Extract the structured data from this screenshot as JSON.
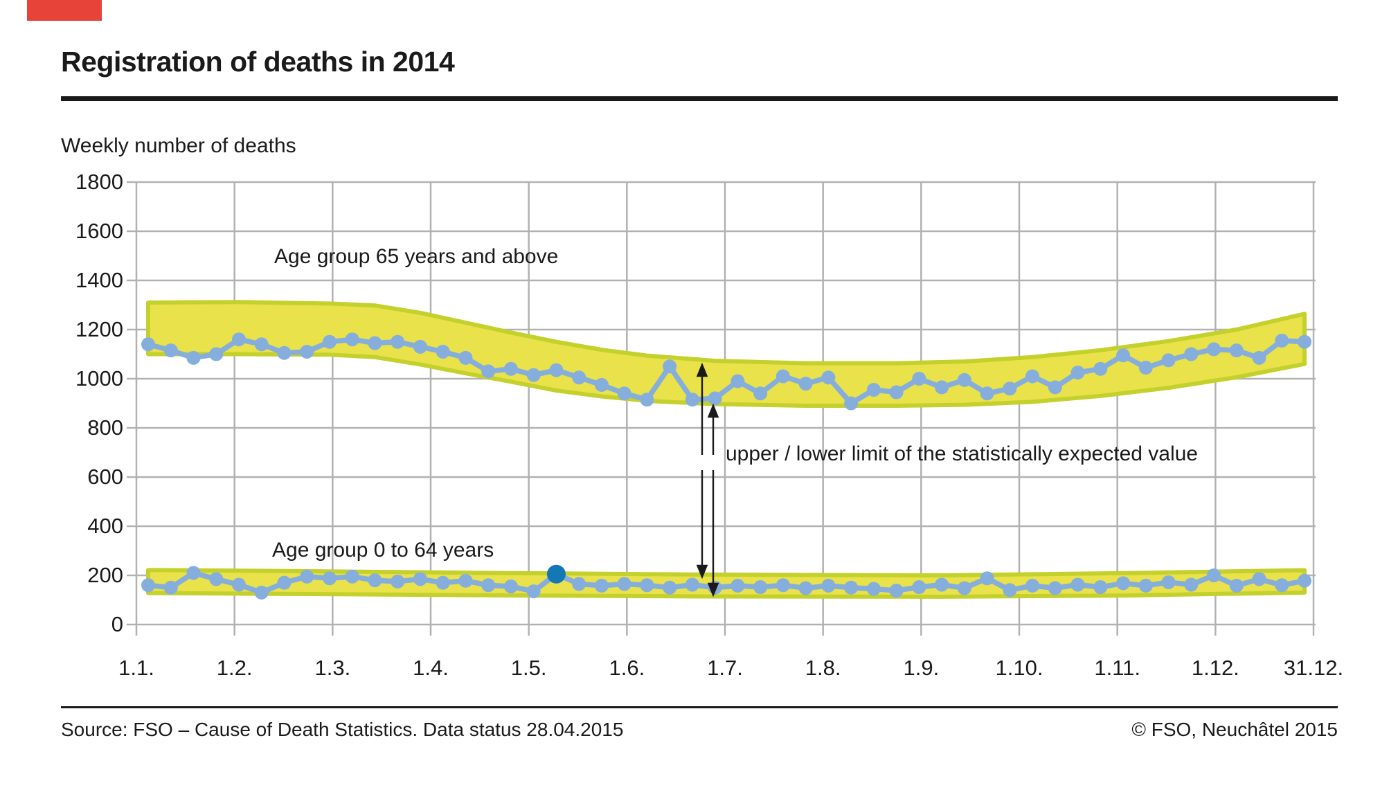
{
  "page": {
    "title": "Registration of deaths in 2014",
    "subtitle": "Weekly number of deaths",
    "source": "Source: FSO – Cause of Death Statistics. Data status 28.04.2015",
    "copyright": "© FSO, Neuchâtel 2015",
    "accent_color": "#e84338"
  },
  "chart_data": {
    "type": "line",
    "title": "Registration of deaths in 2014",
    "ylabel": "Weekly number of deaths",
    "xlabel": "",
    "ylim": [
      0,
      1800
    ],
    "yticks": [
      0,
      200,
      400,
      600,
      800,
      1000,
      1200,
      1400,
      1600,
      1800
    ],
    "xticklabels": [
      "1.1.",
      "1.2.",
      "1.3.",
      "1.4.",
      "1.5.",
      "1.6.",
      "1.7.",
      "1.8.",
      "1.9.",
      "1.10.",
      "1.11.",
      "1.12.",
      "31.12."
    ],
    "grid": true,
    "legend_position": "inline-annotations",
    "annotations": [
      {
        "text": "Age group 65 years and above"
      },
      {
        "text": "Age group 0 to 64 years"
      },
      {
        "text": "upper / lower limit of the statistically expected value"
      }
    ],
    "x_unit": "week of 2014 (52 weeks)",
    "series": [
      {
        "name": "Age group 65 years and above",
        "values": [
          1140,
          1115,
          1085,
          1100,
          1160,
          1140,
          1105,
          1110,
          1150,
          1160,
          1145,
          1150,
          1130,
          1110,
          1085,
          1030,
          1040,
          1015,
          1035,
          1005,
          975,
          940,
          915,
          1050,
          915,
          920,
          990,
          940,
          1010,
          980,
          1005,
          900,
          955,
          945,
          1000,
          965,
          995,
          940,
          960,
          1010,
          965,
          1025,
          1040,
          1095,
          1045,
          1075,
          1100,
          1120,
          1115,
          1085,
          1155,
          1150
        ]
      },
      {
        "name": "Age group 0 to 64 years",
        "values": [
          160,
          150,
          210,
          185,
          162,
          130,
          170,
          195,
          188,
          195,
          180,
          175,
          185,
          170,
          178,
          160,
          155,
          135,
          205,
          165,
          158,
          165,
          160,
          150,
          162,
          150,
          158,
          152,
          160,
          148,
          158,
          150,
          145,
          138,
          152,
          162,
          148,
          188,
          140,
          158,
          148,
          162,
          152,
          168,
          158,
          172,
          162,
          200,
          158,
          185,
          160,
          178
        ],
        "highlight_week": 19
      }
    ],
    "bands": [
      {
        "name": "statistically expected range — 65 years and above",
        "weeks": [
          1,
          5,
          9,
          11,
          13,
          15,
          17,
          19,
          21,
          23,
          26,
          30,
          34,
          37,
          40,
          43,
          46,
          49,
          52
        ],
        "lower": [
          1100,
          1100,
          1098,
          1088,
          1058,
          1022,
          988,
          952,
          928,
          910,
          897,
          890,
          890,
          894,
          906,
          930,
          963,
          1006,
          1060
        ],
        "upper": [
          1310,
          1312,
          1306,
          1298,
          1268,
          1228,
          1188,
          1150,
          1118,
          1094,
          1073,
          1063,
          1063,
          1070,
          1088,
          1116,
          1153,
          1200,
          1264
        ]
      },
      {
        "name": "statistically expected range — 0 to 64 years",
        "weeks": [
          1,
          8,
          16,
          26,
          36,
          44,
          52
        ],
        "lower": [
          128,
          124,
          119,
          114,
          113,
          118,
          130
        ],
        "upper": [
          222,
          217,
          210,
          203,
          200,
          209,
          221
        ]
      }
    ],
    "colors": {
      "series_line": "#85aedd",
      "band_fill": "#e9e24b",
      "band_edge": "#c4d02c",
      "highlight_dot": "#1478b4",
      "grid": "#b1b1b1",
      "text": "#1a1a1a"
    }
  }
}
